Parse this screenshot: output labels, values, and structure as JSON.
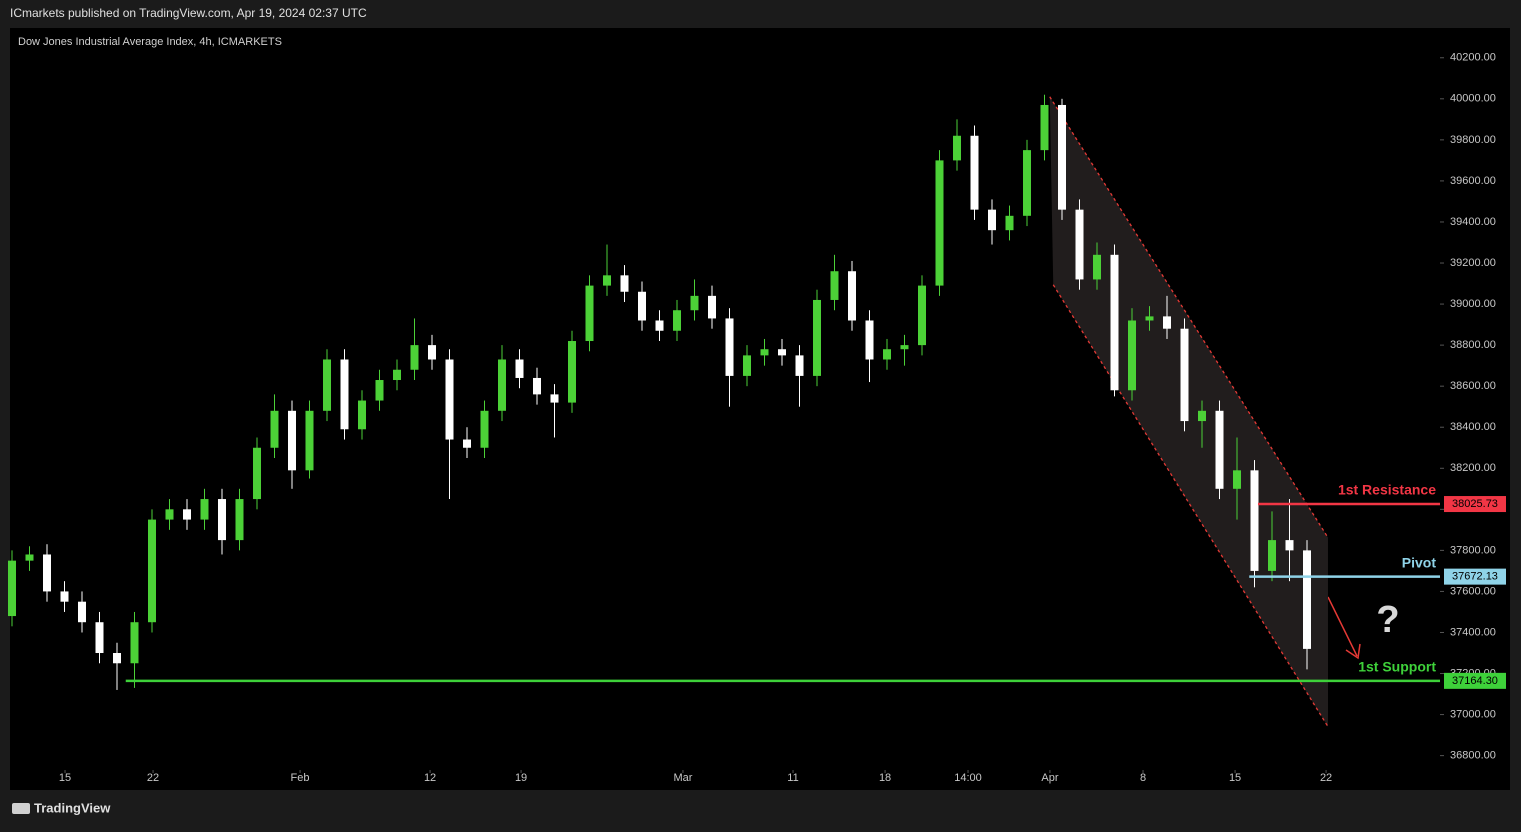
{
  "header": {
    "text": "ICmarkets published on TradingView.com, Apr 19, 2024 02:37 UTC"
  },
  "footer": {
    "text": "TradingView"
  },
  "chart_data": {
    "type": "candlestick",
    "title": "Dow Jones Industrial Average Index, 4h, ICMARKETS",
    "up_color": "#4cd137",
    "down_color": "#ffffff",
    "open": [
      37480,
      37750,
      37780,
      37600,
      37550,
      37450,
      37300,
      37250,
      37450,
      37950,
      38000,
      37950,
      38050,
      37850,
      38050,
      38300,
      38480,
      38190,
      38480,
      38730,
      38390,
      38530,
      38630,
      38680,
      38800,
      38730,
      38340,
      38300,
      38480,
      38730,
      38640,
      38560,
      38520,
      38820,
      39090,
      39140,
      39060,
      38920,
      38870,
      38970,
      39040,
      38930,
      38650,
      38750,
      38780,
      38750,
      38650,
      39020,
      39160,
      38920,
      38730,
      38780,
      38800,
      39090,
      39700,
      39820,
      39460,
      39360,
      39430,
      39750,
      39970,
      39460,
      39120,
      39240,
      38580,
      38920,
      38940,
      38880,
      38430,
      38480,
      38100,
      38190,
      37700,
      37850,
      37800
    ],
    "high": [
      37800,
      37820,
      37830,
      37650,
      37600,
      37500,
      37350,
      37500,
      38000,
      38050,
      38050,
      38100,
      38100,
      38100,
      38350,
      38560,
      38530,
      38530,
      38780,
      38780,
      38580,
      38680,
      38730,
      38930,
      38850,
      38780,
      38400,
      38530,
      38800,
      38780,
      38690,
      38610,
      38870,
      39140,
      39290,
      39190,
      39110,
      38970,
      39020,
      39120,
      39090,
      38980,
      38800,
      38830,
      38830,
      38800,
      39070,
      39240,
      39210,
      38970,
      38830,
      38850,
      39140,
      39750,
      39900,
      39870,
      39510,
      39480,
      39800,
      40020,
      40000,
      39510,
      39300,
      39290,
      38980,
      38990,
      39040,
      38930,
      38530,
      38530,
      38350,
      38240,
      37990,
      38050,
      37850
    ],
    "low": [
      37430,
      37700,
      37550,
      37500,
      37400,
      37250,
      37120,
      37130,
      37400,
      37900,
      37900,
      37900,
      37780,
      37800,
      38000,
      38250,
      38100,
      38150,
      38430,
      38340,
      38340,
      38480,
      38580,
      38630,
      38680,
      38050,
      38250,
      38250,
      38430,
      38590,
      38510,
      38350,
      38470,
      38770,
      39040,
      39010,
      38870,
      38820,
      38820,
      38920,
      38880,
      38500,
      38600,
      38700,
      38700,
      38500,
      38600,
      38970,
      38870,
      38620,
      38680,
      38700,
      38750,
      39040,
      39650,
      39410,
      39290,
      39310,
      39380,
      39700,
      39410,
      39070,
      39070,
      38550,
      38530,
      38870,
      38830,
      38380,
      38300,
      38050,
      37950,
      37620,
      37650,
      37650,
      37220
    ],
    "close": [
      37750,
      37780,
      37600,
      37550,
      37450,
      37300,
      37250,
      37450,
      37950,
      38000,
      37950,
      38050,
      37850,
      38050,
      38300,
      38480,
      38190,
      38480,
      38730,
      38390,
      38530,
      38630,
      38680,
      38800,
      38730,
      38340,
      38300,
      38480,
      38730,
      38640,
      38560,
      38520,
      38820,
      39090,
      39140,
      39060,
      38920,
      38870,
      38970,
      39040,
      38930,
      38650,
      38750,
      38780,
      38750,
      38650,
      39020,
      39160,
      38920,
      38730,
      38780,
      38800,
      39090,
      39700,
      39820,
      39460,
      39360,
      39430,
      39750,
      39970,
      39460,
      39120,
      39240,
      38580,
      38920,
      38940,
      38880,
      38430,
      38480,
      38100,
      38190,
      37700,
      37850,
      37800,
      37320
    ],
    "xlim": [
      -0.114,
      81.6
    ],
    "xticks": [
      {
        "value": 3.03,
        "label": "15"
      },
      {
        "value": 8.06,
        "label": "22"
      },
      {
        "value": 16.46,
        "label": "Feb"
      },
      {
        "value": 23.89,
        "label": "12"
      },
      {
        "value": 29.09,
        "label": "19"
      },
      {
        "value": 38.34,
        "label": "Mar"
      },
      {
        "value": 44.63,
        "label": "11"
      },
      {
        "value": 49.89,
        "label": "18"
      },
      {
        "value": 54.63,
        "label": "14:00"
      },
      {
        "value": 59.31,
        "label": "Apr"
      },
      {
        "value": 64.63,
        "label": "8"
      },
      {
        "value": 69.89,
        "label": "15"
      },
      {
        "value": 75.09,
        "label": "22"
      }
    ],
    "ylim": [
      36730,
      40345
    ],
    "yticks": [
      {
        "value": 36800,
        "label": "36800.00"
      },
      {
        "value": 37000,
        "label": "37000.00"
      },
      {
        "value": 37200,
        "label": "37200.00"
      },
      {
        "value": 37400,
        "label": "37400.00"
      },
      {
        "value": 37600,
        "label": "37600.00"
      },
      {
        "value": 37800,
        "label": "37800.00"
      },
      {
        "value": 38000,
        "label": "38000.00"
      },
      {
        "value": 38200,
        "label": "38200.00"
      },
      {
        "value": 38400,
        "label": "38400.00"
      },
      {
        "value": 38600,
        "label": "38600.00"
      },
      {
        "value": 38800,
        "label": "38800.00"
      },
      {
        "value": 39000,
        "label": "39000.00"
      },
      {
        "value": 39200,
        "label": "39200.00"
      },
      {
        "value": 39400,
        "label": "39400.00"
      },
      {
        "value": 39600,
        "label": "39600.00"
      },
      {
        "value": 39800,
        "label": "39800.00"
      },
      {
        "value": 40000,
        "label": "40000.00"
      },
      {
        "value": 40200,
        "label": "40200.00"
      }
    ],
    "levels": [
      {
        "name": "1st Resistance",
        "value": 38025.73,
        "value_label": "38025.73",
        "color": "#f23645",
        "start": 71.2
      },
      {
        "name": "Pivot",
        "value": 37672.13,
        "value_label": "37672.13",
        "color": "#8fd3e8",
        "start": 70.7
      },
      {
        "name": "1st Support",
        "value": 37164.3,
        "value_label": "37164.30",
        "color": "#3ed13a",
        "start": 6.5
      }
    ],
    "channel": {
      "color": "#e53935",
      "upper": [
        [
          59.3,
          40010
        ],
        [
          75.2,
          37862
        ]
      ],
      "lower": [
        [
          59.5,
          39094
        ],
        [
          75.2,
          36941
        ]
      ]
    },
    "annotation": "?"
  }
}
